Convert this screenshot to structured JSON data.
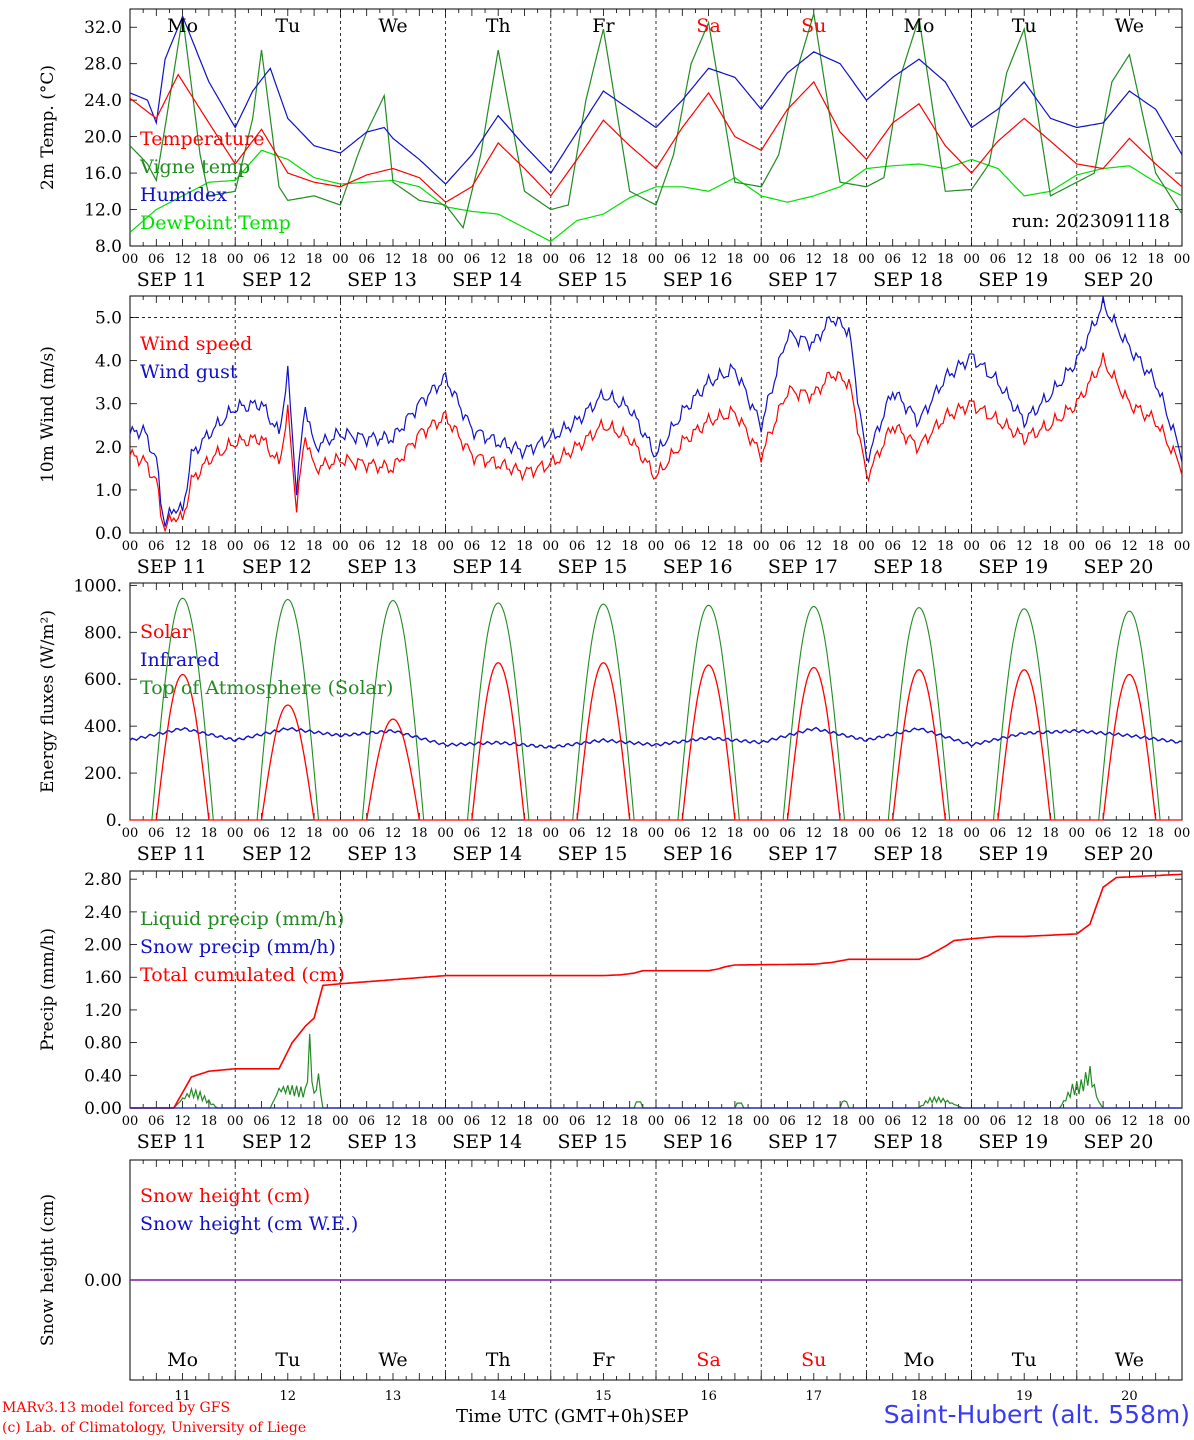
{
  "run_label": "run: 2023091118",
  "days": [
    {
      "abbr": "Mo",
      "color": "#000000",
      "date": "SEP 11",
      "num": "11"
    },
    {
      "abbr": "Tu",
      "color": "#000000",
      "date": "SEP 12",
      "num": "12"
    },
    {
      "abbr": "We",
      "color": "#000000",
      "date": "SEP 13",
      "num": "13"
    },
    {
      "abbr": "Th",
      "color": "#000000",
      "date": "SEP 14",
      "num": "14"
    },
    {
      "abbr": "Fr",
      "color": "#000000",
      "date": "SEP 15",
      "num": "15"
    },
    {
      "abbr": "Sa",
      "color": "#ff0000",
      "date": "SEP 16",
      "num": "16"
    },
    {
      "abbr": "Su",
      "color": "#ff0000",
      "date": "SEP 17",
      "num": "17"
    },
    {
      "abbr": "Mo",
      "color": "#000000",
      "date": "SEP 18",
      "num": "18"
    },
    {
      "abbr": "Tu",
      "color": "#000000",
      "date": "SEP 19",
      "num": "19"
    },
    {
      "abbr": "We",
      "color": "#000000",
      "date": "SEP 20",
      "num": "20"
    }
  ],
  "hour_labels": [
    "00",
    "06",
    "12",
    "18"
  ],
  "hour_labels_end": "00",
  "footer": {
    "model": "MARv3.13 model forced by GFS",
    "lab": "(c) Lab. of Climatology, University of Liege",
    "time_axis": "Time UTC (GMT+0h)",
    "month": "SEP",
    "station": "Saint-Hubert (alt. 558m)"
  },
  "chart_data": [
    {
      "type": "line",
      "ylabel": "2m Temp. (°C)",
      "ylim": [
        8,
        34
      ],
      "yticks": [
        "8.0",
        "12.0",
        "16.0",
        "20.0",
        "24.0",
        "28.0",
        "32.0"
      ],
      "x_unit": "hours since SEP 11 00 UTC",
      "series": [
        {
          "name": "Temperature",
          "color": "#ff0000",
          "x": [
            0,
            6,
            11,
            18,
            24,
            30,
            36,
            42,
            48,
            54,
            60,
            66,
            72,
            78,
            84,
            90,
            96,
            102,
            108,
            114,
            120,
            126,
            132,
            138,
            144,
            150,
            156,
            162,
            168,
            174,
            180,
            186,
            192,
            198,
            204,
            210,
            216,
            222,
            228,
            234,
            240
          ],
          "values": [
            24.2,
            22,
            26.8,
            21.5,
            17,
            20.8,
            16,
            15,
            14.5,
            15.8,
            16.5,
            15.5,
            12.8,
            14.5,
            19.3,
            16.5,
            13.5,
            17.5,
            21.8,
            19,
            16.5,
            21,
            24.8,
            20,
            18.5,
            23,
            26,
            20.5,
            17.5,
            21.5,
            23.6,
            19,
            16,
            19.5,
            22,
            19.5,
            17,
            16.5,
            19.8,
            17,
            14.5
          ]
        },
        {
          "name": "Vigne temp",
          "color": "#228b22",
          "x": [
            0,
            4,
            6,
            10,
            12,
            16,
            18,
            24,
            28,
            30,
            34,
            36,
            42,
            48,
            52,
            54,
            58,
            60,
            66,
            72,
            76,
            80,
            84,
            90,
            96,
            100,
            104,
            108,
            114,
            120,
            124,
            128,
            132,
            138,
            144,
            148,
            152,
            156,
            162,
            168,
            172,
            176,
            180,
            186,
            192,
            196,
            200,
            204,
            210,
            216,
            220,
            224,
            228,
            234,
            240
          ],
          "values": [
            19,
            17,
            15.2,
            27,
            33.2,
            18,
            13.5,
            14,
            22,
            29.5,
            14.5,
            13,
            13.5,
            12.5,
            18,
            20.5,
            24.5,
            15,
            13,
            12.5,
            10,
            18,
            29.5,
            14,
            12,
            12.5,
            24,
            31.8,
            14,
            12.5,
            18,
            28,
            32.5,
            15,
            14.5,
            18,
            27,
            33.5,
            15,
            14.5,
            15.5,
            27,
            33,
            14,
            14.2,
            17,
            27,
            31.8,
            13.5,
            15,
            16,
            26,
            29,
            16,
            11.5
          ]
        },
        {
          "name": "Humidex",
          "color": "#1010c8",
          "x": [
            0,
            4,
            6,
            8,
            12,
            18,
            24,
            28,
            32,
            36,
            42,
            48,
            54,
            58,
            60,
            66,
            72,
            78,
            84,
            90,
            96,
            102,
            108,
            114,
            120,
            126,
            132,
            138,
            144,
            150,
            156,
            162,
            168,
            174,
            180,
            186,
            192,
            198,
            204,
            210,
            216,
            222,
            228,
            234,
            240
          ],
          "values": [
            24.8,
            24,
            21.5,
            28.5,
            33.2,
            26,
            21,
            25,
            27.5,
            22,
            19,
            18.2,
            20.5,
            21,
            19.8,
            17.5,
            14.8,
            18,
            22.3,
            19,
            16,
            20.5,
            25,
            23,
            21,
            24,
            27.5,
            26.5,
            23,
            27,
            29.3,
            28,
            24,
            26.5,
            28.5,
            26,
            21,
            23,
            26,
            22,
            21,
            21.5,
            25,
            23,
            18
          ]
        },
        {
          "name": "DewPoint Temp",
          "color": "#00e000",
          "x": [
            0,
            6,
            12,
            18,
            24,
            30,
            36,
            42,
            48,
            54,
            60,
            66,
            72,
            78,
            84,
            90,
            96,
            102,
            108,
            114,
            120,
            126,
            132,
            138,
            144,
            150,
            156,
            162,
            168,
            174,
            180,
            186,
            192,
            198,
            204,
            210,
            216,
            222,
            228,
            234,
            240
          ],
          "values": [
            9.5,
            12,
            13.5,
            15,
            15.2,
            18.5,
            17.5,
            15.5,
            14.8,
            15,
            15.2,
            14.5,
            12.3,
            11.8,
            11.5,
            10,
            8.5,
            10.8,
            11.5,
            13.3,
            14.5,
            14.5,
            14,
            15.5,
            13.5,
            12.8,
            13.5,
            14.5,
            16.5,
            16.8,
            17,
            16.5,
            17.5,
            16.5,
            13.5,
            14,
            15.8,
            16.5,
            16.8,
            15,
            13.5
          ]
        }
      ]
    },
    {
      "type": "line",
      "ylabel": "10m Wind (m/s)",
      "ylim": [
        0,
        5.5
      ],
      "yticks": [
        "0.0",
        "1.0",
        "2.0",
        "3.0",
        "4.0",
        "5.0"
      ],
      "x_unit": "hours since SEP 11 00 UTC",
      "series": [
        {
          "name": "Wind speed",
          "color": "#ff0000",
          "x": [
            0,
            3,
            6,
            7,
            8,
            10,
            12,
            14,
            18,
            24,
            30,
            34,
            36,
            38,
            40,
            42,
            48,
            54,
            60,
            66,
            72,
            78,
            84,
            90,
            96,
            102,
            108,
            114,
            120,
            126,
            132,
            138,
            144,
            150,
            156,
            160,
            164,
            166,
            168,
            174,
            180,
            186,
            192,
            198,
            204,
            210,
            216,
            222,
            228,
            234,
            240
          ],
          "values": [
            1.8,
            1.7,
            1.2,
            0.5,
            0.1,
            0.4,
            0.3,
            1.2,
            1.7,
            2.1,
            2.2,
            1.6,
            2.8,
            0.6,
            2.3,
            1.5,
            1.7,
            1.6,
            1.5,
            2.3,
            2.7,
            1.8,
            1.6,
            1.4,
            1.6,
            2.0,
            2.5,
            2.2,
            1.3,
            2.1,
            2.6,
            2.8,
            1.8,
            3.3,
            3.2,
            3.7,
            3.5,
            2.5,
            1.3,
            2.5,
            2.0,
            2.7,
            3.0,
            2.6,
            2.2,
            2.5,
            3.0,
            4.0,
            3.0,
            2.6,
            1.5
          ]
        },
        {
          "name": "Wind gust",
          "color": "#1010c8",
          "x": [
            0,
            3,
            6,
            7,
            8,
            10,
            12,
            14,
            18,
            24,
            30,
            34,
            36,
            38,
            40,
            42,
            48,
            54,
            60,
            66,
            72,
            78,
            84,
            90,
            96,
            102,
            108,
            114,
            120,
            126,
            132,
            138,
            144,
            150,
            156,
            160,
            164,
            166,
            168,
            174,
            180,
            186,
            192,
            198,
            204,
            210,
            216,
            222,
            228,
            234,
            240
          ],
          "values": [
            2.3,
            2.4,
            1.7,
            0.8,
            0.2,
            0.6,
            0.5,
            1.8,
            2.3,
            2.9,
            3.0,
            2.3,
            3.7,
            1.0,
            3.0,
            2.0,
            2.3,
            2.2,
            2.2,
            3.0,
            3.6,
            2.4,
            2.1,
            1.9,
            2.2,
            2.6,
            3.2,
            2.9,
            1.8,
            2.8,
            3.5,
            3.8,
            2.5,
            4.6,
            4.4,
            5.0,
            4.7,
            3.2,
            1.7,
            3.3,
            2.6,
            3.6,
            4.1,
            3.5,
            2.6,
            3.2,
            4.0,
            5.3,
            4.3,
            3.5,
            1.8
          ]
        }
      ]
    },
    {
      "type": "line",
      "ylabel": "Energy fluxes (W/m²)",
      "ylim": [
        0,
        1000
      ],
      "yticks": [
        "0.",
        "200.",
        "400.",
        "600.",
        "800.",
        "1000."
      ],
      "x_unit": "hours since SEP 11 00 UTC",
      "series": [
        {
          "name": "Solar",
          "color": "#ff0000",
          "daily_peak": [
            620,
            490,
            430,
            670,
            670,
            660,
            650,
            640,
            640,
            620
          ]
        },
        {
          "name": "Infrared",
          "color": "#1010c8",
          "x": [
            0,
            12,
            24,
            36,
            48,
            60,
            72,
            84,
            96,
            108,
            120,
            132,
            144,
            156,
            168,
            180,
            192,
            204,
            216,
            228,
            240
          ],
          "values": [
            340,
            390,
            340,
            390,
            360,
            380,
            320,
            330,
            310,
            340,
            320,
            350,
            330,
            390,
            340,
            390,
            320,
            370,
            380,
            360,
            330
          ]
        },
        {
          "name": "Top of Atmosphere (Solar)",
          "color": "#228b22",
          "daily_peak": [
            945,
            940,
            935,
            925,
            920,
            915,
            910,
            905,
            900,
            890
          ]
        }
      ]
    },
    {
      "type": "line",
      "ylabel": "Precip (mm/h)",
      "ylim": [
        0,
        2.9
      ],
      "yticks": [
        "0.00",
        "0.40",
        "0.80",
        "1.20",
        "1.60",
        "2.00",
        "2.40",
        "2.80"
      ],
      "x_unit": "hours since SEP 11 00 UTC",
      "series": [
        {
          "name": "Liquid precip (mm/h)",
          "color": "#228b22",
          "x": [
            0,
            10,
            12,
            14,
            16,
            20,
            24,
            32,
            34,
            36,
            40,
            41,
            42,
            43,
            44,
            48,
            72,
            115,
            116,
            117,
            138,
            139,
            140,
            162,
            163,
            164,
            180,
            182,
            184,
            186,
            190,
            200,
            212,
            215,
            217,
            219,
            221,
            222,
            240
          ],
          "values": [
            0,
            0,
            0.15,
            0.25,
            0.2,
            0,
            0,
            0,
            0.3,
            0.3,
            0.25,
            0.95,
            0.2,
            0.5,
            0,
            0,
            0,
            0,
            0.15,
            0,
            0,
            0.12,
            0,
            0,
            0.16,
            0,
            0,
            0.12,
            0.14,
            0.12,
            0,
            0,
            0,
            0.3,
            0.35,
            0.55,
            0.1,
            0,
            0
          ]
        },
        {
          "name": "Snow precip (mm/h)",
          "color": "#1010c8",
          "x": [
            0,
            240
          ],
          "values": [
            0,
            0
          ]
        },
        {
          "name": "Total cumulated (cm)",
          "color": "#ff0000",
          "x": [
            0,
            10,
            14,
            18,
            24,
            34,
            37,
            40,
            42,
            44,
            48,
            60,
            72,
            108,
            112,
            115,
            117,
            132,
            134,
            136,
            138,
            156,
            160,
            162,
            164,
            180,
            182,
            184,
            186,
            188,
            198,
            204,
            216,
            219,
            221,
            222,
            225,
            240
          ],
          "values": [
            0,
            0,
            0.38,
            0.45,
            0.48,
            0.48,
            0.8,
            1.0,
            1.1,
            1.5,
            1.52,
            1.57,
            1.62,
            1.62,
            1.63,
            1.65,
            1.68,
            1.68,
            1.7,
            1.73,
            1.75,
            1.76,
            1.78,
            1.8,
            1.82,
            1.82,
            1.86,
            1.92,
            1.98,
            2.05,
            2.1,
            2.1,
            2.13,
            2.25,
            2.55,
            2.7,
            2.82,
            2.86
          ]
        }
      ]
    },
    {
      "type": "line",
      "ylabel": "Snow height (cm)",
      "yticks": [
        "0.00"
      ],
      "x_unit": "hours since SEP 11 00 UTC",
      "series": [
        {
          "name": "Snow height (cm)",
          "color": "#ff0000",
          "x": [
            0,
            240
          ],
          "values": [
            0,
            0
          ]
        },
        {
          "name": "Snow height (cm W.E.)",
          "color": "#1010c8",
          "x": [
            0,
            240
          ],
          "values": [
            0,
            0
          ]
        }
      ]
    }
  ]
}
